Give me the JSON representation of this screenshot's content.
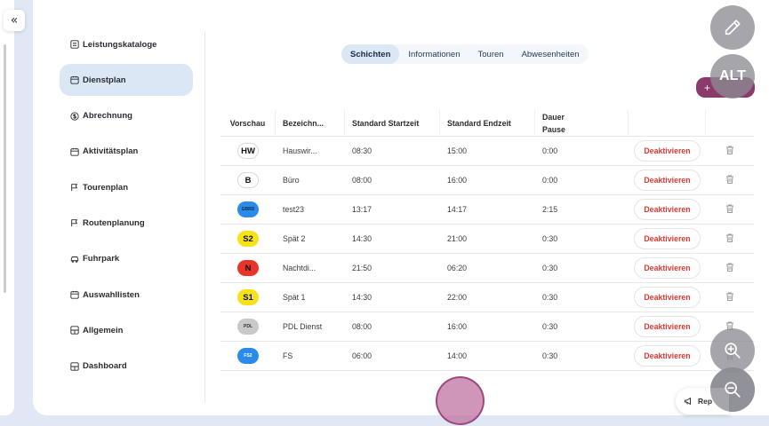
{
  "sidebar": {
    "items": [
      {
        "label": "Leistungskataloge",
        "icon": "catalog-icon",
        "active": false
      },
      {
        "label": "Dienstplan",
        "icon": "calendar-icon",
        "active": true
      },
      {
        "label": "Abrechnung",
        "icon": "dollar-icon",
        "active": false
      },
      {
        "label": "Aktivitätsplan",
        "icon": "calendar-icon",
        "active": false
      },
      {
        "label": "Tourenplan",
        "icon": "flag-icon",
        "active": false
      },
      {
        "label": "Routenplanung",
        "icon": "flag-icon",
        "active": false
      },
      {
        "label": "Fuhrpark",
        "icon": "car-icon",
        "active": false
      },
      {
        "label": "Auswahllisten",
        "icon": "calendar-icon",
        "active": false
      },
      {
        "label": "Allgemein",
        "icon": "grid-icon",
        "active": false
      },
      {
        "label": "Dashboard",
        "icon": "grid-icon",
        "active": false
      }
    ]
  },
  "tabs": [
    {
      "label": "Schichten",
      "active": true
    },
    {
      "label": "Informationen",
      "active": false
    },
    {
      "label": "Touren",
      "active": false
    },
    {
      "label": "Abwesenheiten",
      "active": false
    }
  ],
  "add_button": {
    "label": "+"
  },
  "table": {
    "headers": {
      "preview": "Vorschau",
      "name": "Bezeichn...",
      "start": "Standard Startzeit",
      "end": "Standard Endzeit",
      "pause_line1": "Dauer",
      "pause_line2": "Pause"
    },
    "rows": [
      {
        "badge": "HW",
        "badge_bg": "#ffffff",
        "badge_fg": "#111111",
        "badge_style": "outline",
        "name": "Hauswir...",
        "start": "08:30",
        "end": "15:00",
        "pause": "0:00",
        "action": "Deaktivieren"
      },
      {
        "badge": "B",
        "badge_bg": "#ffffff",
        "badge_fg": "#111111",
        "badge_style": "outline",
        "name": "Büro",
        "start": "08:00",
        "end": "16:00",
        "pause": "0:00",
        "action": "Deaktivieren"
      },
      {
        "badge": "GBRD",
        "badge_bg": "#2a8ce8",
        "badge_fg": "#0d2a4a",
        "badge_style": "small",
        "name": "test23",
        "start": "13:17",
        "end": "14:17",
        "pause": "2:15",
        "action": "Deaktivieren"
      },
      {
        "badge": "S2",
        "badge_bg": "#f7e21a",
        "badge_fg": "#111111",
        "badge_style": "",
        "name": "Spät 2",
        "start": "14:30",
        "end": "21:00",
        "pause": "0:30",
        "action": "Deaktivieren"
      },
      {
        "badge": "N",
        "badge_bg": "#e8352a",
        "badge_fg": "#111111",
        "badge_style": "",
        "name": "Nachtdi...",
        "start": "21:50",
        "end": "06:20",
        "pause": "0:30",
        "action": "Deaktivieren"
      },
      {
        "badge": "S1",
        "badge_bg": "#f7e21a",
        "badge_fg": "#111111",
        "badge_style": "",
        "name": "Spät 1",
        "start": "14:30",
        "end": "22:00",
        "pause": "0:30",
        "action": "Deaktivieren"
      },
      {
        "badge": "PDL",
        "badge_bg": "#c9c9cc",
        "badge_fg": "#333333",
        "badge_style": "small",
        "name": "PDL Dienst",
        "start": "08:00",
        "end": "16:00",
        "pause": "0:30",
        "action": "Deaktivieren"
      },
      {
        "badge": "FS2",
        "badge_bg": "#2a8ce8",
        "badge_fg": "#ffffff",
        "badge_style": "small",
        "name": "FS",
        "start": "06:00",
        "end": "14:00",
        "pause": "0:30",
        "action": "Deaktivieren"
      }
    ]
  },
  "overlay": {
    "alt_label": "ALT",
    "report_label": "Rep"
  },
  "colors": {
    "accent": "#dce7f5",
    "add_button": "#8b3a6b",
    "danger": "#e03a32"
  }
}
